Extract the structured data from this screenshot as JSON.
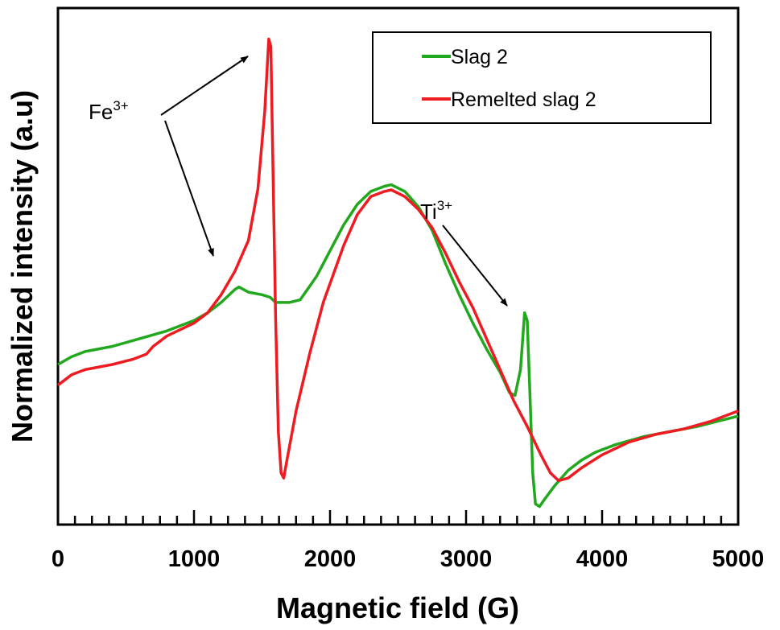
{
  "chart_data": {
    "type": "line",
    "title": "",
    "xlabel": "Magnetic field (G)",
    "ylabel": "Normalized intensity (a.u)",
    "xlim": [
      0,
      5000
    ],
    "ylim": [
      0,
      1
    ],
    "x_ticks": [
      "0",
      "1000",
      "2000",
      "3000",
      "4000",
      "5000"
    ],
    "grid": false,
    "legend_position": "top-right",
    "series": [
      {
        "name": "Slag 2",
        "color": "#22a81e",
        "points": [
          [
            0,
            0.31
          ],
          [
            100,
            0.325
          ],
          [
            200,
            0.335
          ],
          [
            400,
            0.345
          ],
          [
            600,
            0.36
          ],
          [
            800,
            0.375
          ],
          [
            1000,
            0.395
          ],
          [
            1100,
            0.41
          ],
          [
            1200,
            0.43
          ],
          [
            1300,
            0.455
          ],
          [
            1330,
            0.46
          ],
          [
            1400,
            0.45
          ],
          [
            1500,
            0.445
          ],
          [
            1560,
            0.44
          ],
          [
            1600,
            0.43
          ],
          [
            1700,
            0.43
          ],
          [
            1780,
            0.435
          ],
          [
            1900,
            0.48
          ],
          [
            2000,
            0.53
          ],
          [
            2100,
            0.58
          ],
          [
            2200,
            0.62
          ],
          [
            2300,
            0.645
          ],
          [
            2400,
            0.655
          ],
          [
            2450,
            0.658
          ],
          [
            2550,
            0.645
          ],
          [
            2650,
            0.615
          ],
          [
            2750,
            0.57
          ],
          [
            2850,
            0.505
          ],
          [
            2950,
            0.445
          ],
          [
            3050,
            0.39
          ],
          [
            3150,
            0.34
          ],
          [
            3250,
            0.295
          ],
          [
            3320,
            0.255
          ],
          [
            3360,
            0.25
          ],
          [
            3400,
            0.3
          ],
          [
            3430,
            0.41
          ],
          [
            3450,
            0.395
          ],
          [
            3470,
            0.25
          ],
          [
            3490,
            0.1
          ],
          [
            3510,
            0.04
          ],
          [
            3540,
            0.035
          ],
          [
            3580,
            0.05
          ],
          [
            3650,
            0.075
          ],
          [
            3750,
            0.105
          ],
          [
            3850,
            0.125
          ],
          [
            3950,
            0.14
          ],
          [
            4100,
            0.155
          ],
          [
            4300,
            0.17
          ],
          [
            4500,
            0.18
          ],
          [
            4700,
            0.19
          ],
          [
            4850,
            0.2
          ],
          [
            5000,
            0.21
          ]
        ]
      },
      {
        "name": "Remelted slag 2",
        "color": "#ee1c22",
        "points": [
          [
            0,
            0.27
          ],
          [
            100,
            0.29
          ],
          [
            200,
            0.3
          ],
          [
            400,
            0.31
          ],
          [
            550,
            0.32
          ],
          [
            650,
            0.33
          ],
          [
            700,
            0.345
          ],
          [
            800,
            0.365
          ],
          [
            1000,
            0.39
          ],
          [
            1100,
            0.41
          ],
          [
            1200,
            0.445
          ],
          [
            1300,
            0.49
          ],
          [
            1400,
            0.55
          ],
          [
            1470,
            0.65
          ],
          [
            1520,
            0.8
          ],
          [
            1550,
            0.94
          ],
          [
            1565,
            0.925
          ],
          [
            1580,
            0.7
          ],
          [
            1600,
            0.4
          ],
          [
            1620,
            0.18
          ],
          [
            1640,
            0.1
          ],
          [
            1660,
            0.09
          ],
          [
            1680,
            0.12
          ],
          [
            1750,
            0.22
          ],
          [
            1850,
            0.33
          ],
          [
            1950,
            0.43
          ],
          [
            2100,
            0.54
          ],
          [
            2200,
            0.6
          ],
          [
            2300,
            0.635
          ],
          [
            2400,
            0.645
          ],
          [
            2450,
            0.648
          ],
          [
            2550,
            0.635
          ],
          [
            2650,
            0.61
          ],
          [
            2750,
            0.575
          ],
          [
            2850,
            0.525
          ],
          [
            2950,
            0.47
          ],
          [
            3050,
            0.42
          ],
          [
            3150,
            0.36
          ],
          [
            3250,
            0.3
          ],
          [
            3350,
            0.24
          ],
          [
            3450,
            0.19
          ],
          [
            3550,
            0.135
          ],
          [
            3620,
            0.1
          ],
          [
            3680,
            0.085
          ],
          [
            3750,
            0.09
          ],
          [
            3850,
            0.11
          ],
          [
            4000,
            0.135
          ],
          [
            4200,
            0.16
          ],
          [
            4400,
            0.175
          ],
          [
            4600,
            0.185
          ],
          [
            4800,
            0.2
          ],
          [
            5000,
            0.22
          ]
        ]
      }
    ],
    "annotations": [
      {
        "text": "Fe",
        "superscript": "3+"
      },
      {
        "text": "Ti",
        "superscript": "3+"
      }
    ]
  }
}
